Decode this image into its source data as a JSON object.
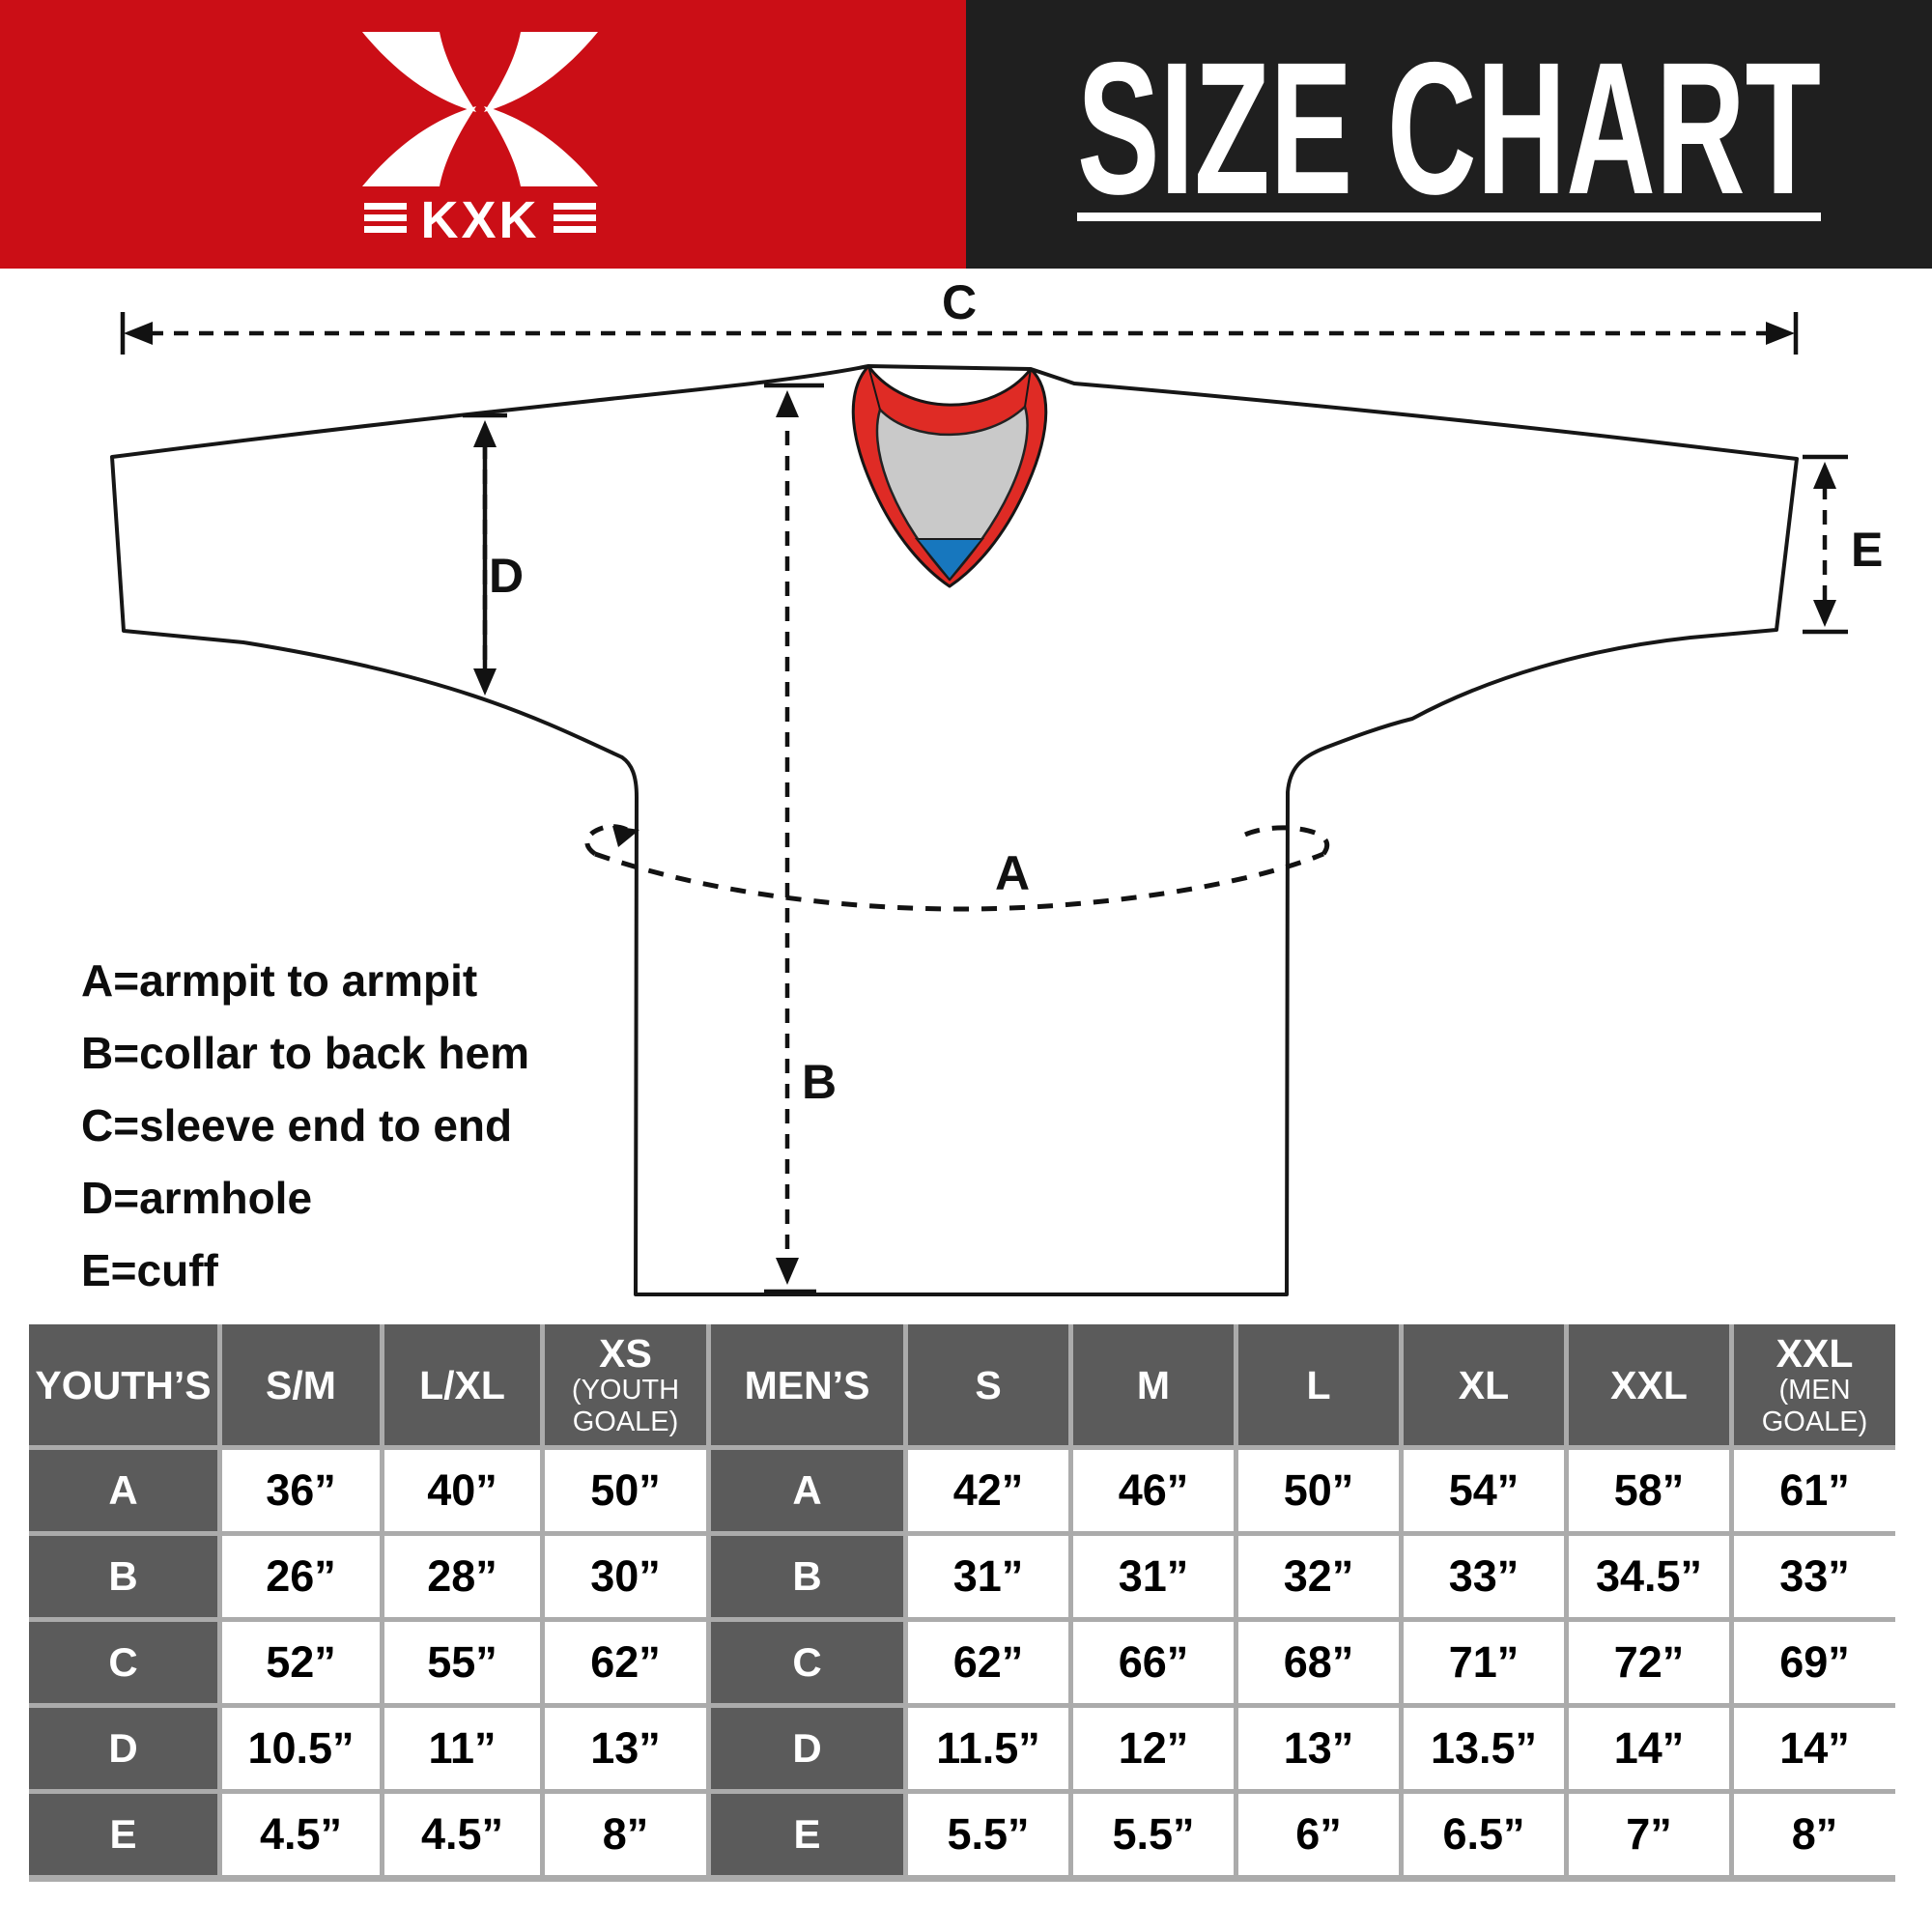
{
  "banner": {
    "logo_text": "KXK",
    "title": "SIZE CHART",
    "red_color": "#CB0E16",
    "black_color": "#1F1F1F"
  },
  "diagram": {
    "labels": {
      "a": "A",
      "b": "B",
      "c": "C",
      "d": "D",
      "e": "E"
    },
    "collar_red": "#DF2B25",
    "collar_gray": "#C9C9C9",
    "collar_blue": "#1777BE"
  },
  "legend": {
    "lines": [
      "A=armpit to armpit",
      "B=collar to back hem",
      "C=sleeve end to end",
      "D=armhole",
      "E=cuff"
    ]
  },
  "table": {
    "header_bg": "#5B5B5B",
    "grid_color": "#ABABAB",
    "columns": [
      {
        "label": "YOUTH’S"
      },
      {
        "label": "S/M"
      },
      {
        "label": "L/XL"
      },
      {
        "label": "XS",
        "sub": [
          "(YOUTH",
          "GOALE)"
        ]
      },
      {
        "label": "MEN’S"
      },
      {
        "label": "S"
      },
      {
        "label": "M"
      },
      {
        "label": "L"
      },
      {
        "label": "XL"
      },
      {
        "label": "XXL"
      },
      {
        "label": "XXL",
        "sub": [
          "(MEN",
          "GOALE)"
        ]
      }
    ],
    "rows": [
      {
        "youth_label": "A",
        "youth_values": [
          "36”",
          "40”",
          "50”"
        ],
        "mens_label": "A",
        "mens_values": [
          "42”",
          "46”",
          "50”",
          "54”",
          "58”",
          "61”"
        ]
      },
      {
        "youth_label": "B",
        "youth_values": [
          "26”",
          "28”",
          "30”"
        ],
        "mens_label": "B",
        "mens_values": [
          "31”",
          "31”",
          "32”",
          "33”",
          "34.5”",
          "33”"
        ]
      },
      {
        "youth_label": "C",
        "youth_values": [
          "52”",
          "55”",
          "62”"
        ],
        "mens_label": "C",
        "mens_values": [
          "62”",
          "66”",
          "68”",
          "71”",
          "72”",
          "69”"
        ]
      },
      {
        "youth_label": "D",
        "youth_values": [
          "10.5”",
          "11”",
          "13”"
        ],
        "mens_label": "D",
        "mens_values": [
          "11.5”",
          "12”",
          "13”",
          "13.5”",
          "14”",
          "14”"
        ]
      },
      {
        "youth_label": "E",
        "youth_values": [
          "4.5”",
          "4.5”",
          "8”"
        ],
        "mens_label": "E",
        "mens_values": [
          "5.5”",
          "5.5”",
          "6”",
          "6.5”",
          "7”",
          "8”"
        ]
      }
    ]
  }
}
